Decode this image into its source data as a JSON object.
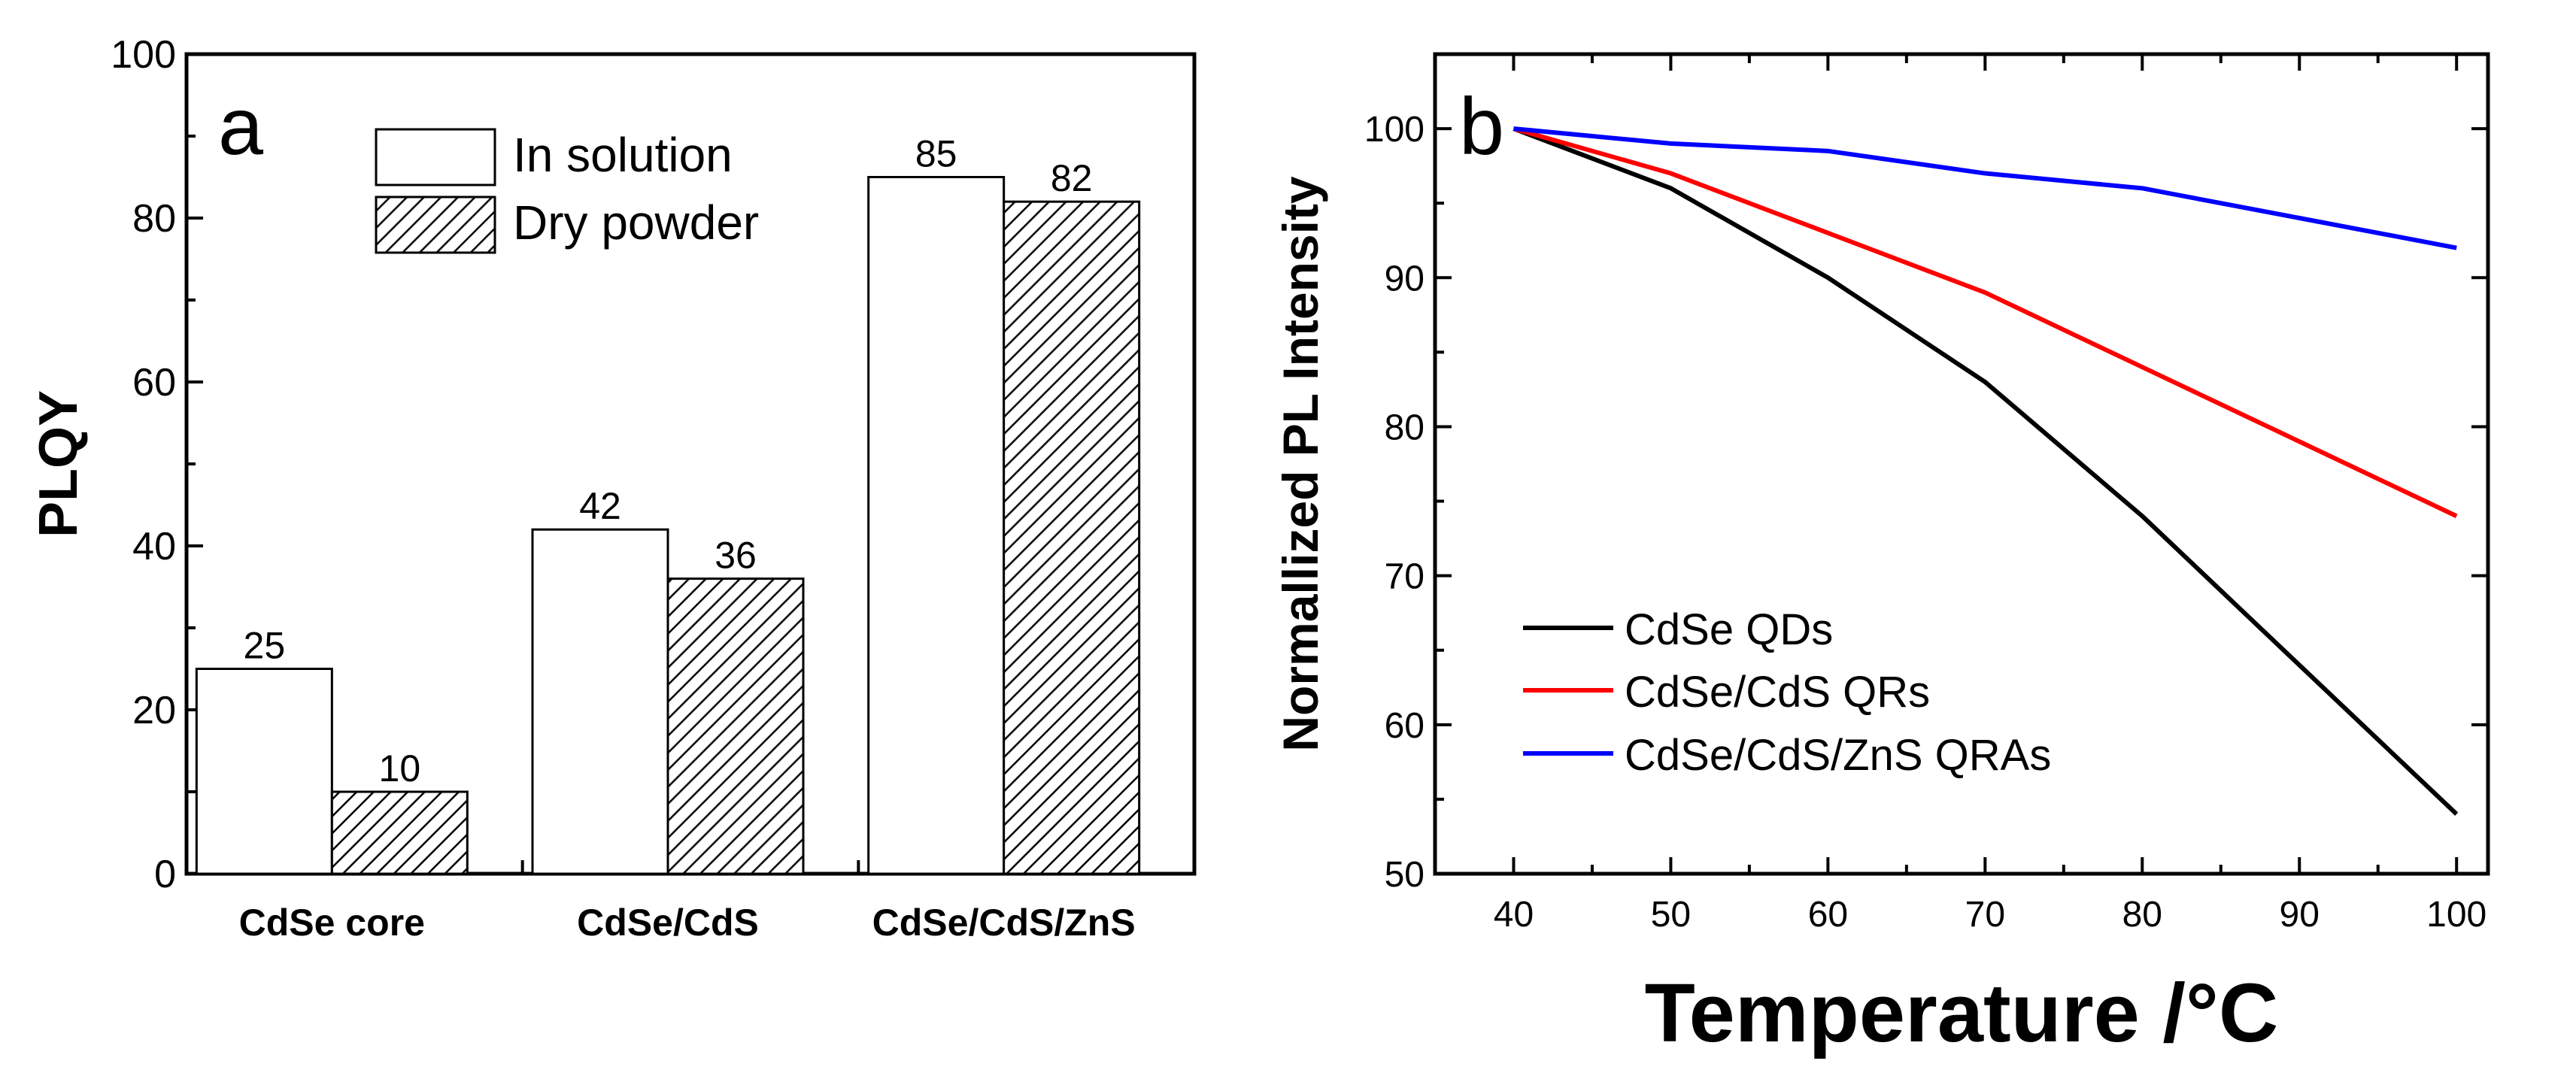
{
  "chart_data": [
    {
      "panel_label": "a",
      "type": "bar",
      "categories": [
        "CdSe core",
        "CdSe/CdS",
        "CdSe/CdS/ZnS"
      ],
      "series": [
        {
          "name": "In solution",
          "values": [
            25,
            42,
            85
          ],
          "pattern": "open"
        },
        {
          "name": "Dry powder",
          "values": [
            10,
            36,
            82
          ],
          "pattern": "hatched"
        }
      ],
      "data_labels": [
        [
          "25",
          "10"
        ],
        [
          "42",
          "36"
        ],
        [
          "85",
          "82"
        ]
      ],
      "ylabel": "PLQY",
      "xlabel": "",
      "ylim": [
        0,
        100
      ],
      "yticks": [
        "0",
        "20",
        "40",
        "60",
        "80",
        "100"
      ],
      "legend_position": "top-center"
    },
    {
      "panel_label": "b",
      "type": "line",
      "x": [
        40,
        50,
        60,
        70,
        80,
        90,
        100
      ],
      "series": [
        {
          "name": "CdSe QDs",
          "color": "#000000",
          "values": [
            100,
            96,
            90,
            83,
            74,
            64,
            54
          ]
        },
        {
          "name": "CdSe/CdS QRs",
          "color": "#ff0000",
          "values": [
            100,
            97,
            93,
            89,
            84,
            79,
            74
          ]
        },
        {
          "name": "CdSe/CdS/ZnS QRAs",
          "color": "#0000ff",
          "values": [
            100,
            99,
            98.5,
            97,
            96,
            94,
            92
          ]
        }
      ],
      "xlabel": "Temperature /°C",
      "ylabel": "Normallized PL Intensity",
      "xlim": [
        35,
        102
      ],
      "ylim": [
        50,
        105
      ],
      "xticks": [
        "40",
        "50",
        "60",
        "70",
        "80",
        "90",
        "100"
      ],
      "yticks": [
        "50",
        "60",
        "70",
        "80",
        "90",
        "100"
      ],
      "legend_position": "bottom-left"
    }
  ]
}
